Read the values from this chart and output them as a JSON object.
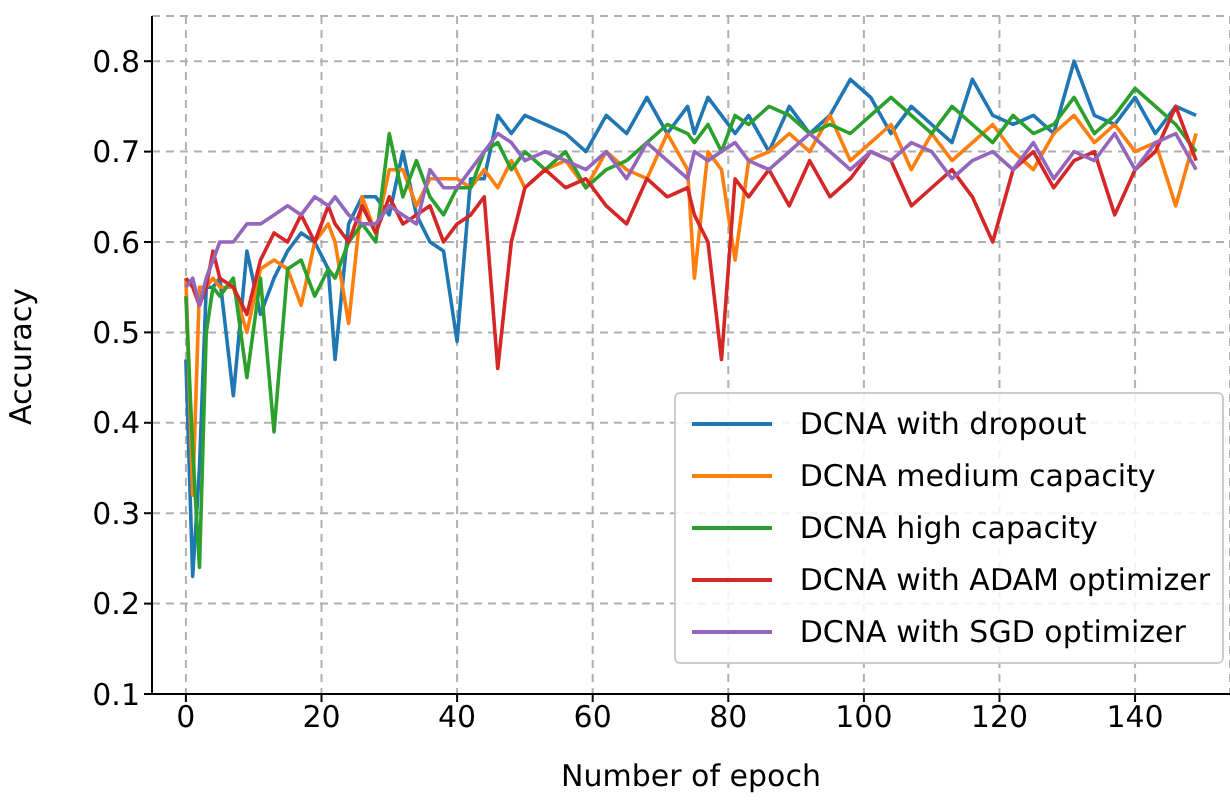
{
  "chart_data": {
    "type": "line",
    "xlabel": "Number of epoch",
    "ylabel": "Accuracy",
    "x": [
      0,
      1,
      2,
      3,
      4,
      5,
      7,
      9,
      11,
      13,
      15,
      17,
      19,
      21,
      22,
      24,
      26,
      28,
      30,
      32,
      34,
      36,
      38,
      40,
      42,
      44,
      46,
      48,
      50,
      53,
      56,
      59,
      62,
      65,
      68,
      71,
      74,
      75,
      77,
      79,
      81,
      83,
      86,
      89,
      92,
      95,
      98,
      101,
      104,
      107,
      110,
      113,
      116,
      119,
      122,
      125,
      128,
      131,
      134,
      137,
      140,
      143,
      146,
      149
    ],
    "series": [
      {
        "name": "DCNA with dropout",
        "color": "#1f77b4",
        "values": [
          0.47,
          0.23,
          0.35,
          0.55,
          0.55,
          0.56,
          0.43,
          0.59,
          0.52,
          0.56,
          0.59,
          0.61,
          0.6,
          0.57,
          0.47,
          0.62,
          0.65,
          0.65,
          0.63,
          0.7,
          0.63,
          0.6,
          0.59,
          0.49,
          0.67,
          0.67,
          0.74,
          0.72,
          0.74,
          0.73,
          0.72,
          0.7,
          0.74,
          0.72,
          0.76,
          0.72,
          0.75,
          0.72,
          0.76,
          0.74,
          0.72,
          0.74,
          0.7,
          0.75,
          0.72,
          0.74,
          0.78,
          0.76,
          0.72,
          0.75,
          0.73,
          0.71,
          0.78,
          0.74,
          0.73,
          0.74,
          0.72,
          0.8,
          0.74,
          0.73,
          0.76,
          0.72,
          0.75,
          0.74
        ]
      },
      {
        "name": "DCNA medium capacity",
        "color": "#ff7f0e",
        "values": [
          0.56,
          0.32,
          0.55,
          0.55,
          0.56,
          0.55,
          0.55,
          0.5,
          0.57,
          0.58,
          0.57,
          0.53,
          0.6,
          0.62,
          0.6,
          0.51,
          0.65,
          0.61,
          0.68,
          0.68,
          0.64,
          0.67,
          0.67,
          0.67,
          0.66,
          0.68,
          0.66,
          0.69,
          0.66,
          0.68,
          0.69,
          0.66,
          0.7,
          0.68,
          0.67,
          0.72,
          0.68,
          0.56,
          0.7,
          0.68,
          0.58,
          0.69,
          0.7,
          0.72,
          0.7,
          0.74,
          0.69,
          0.71,
          0.73,
          0.68,
          0.72,
          0.69,
          0.71,
          0.73,
          0.7,
          0.68,
          0.72,
          0.74,
          0.71,
          0.73,
          0.7,
          0.71,
          0.64,
          0.72
        ]
      },
      {
        "name": "DCNA high capacity",
        "color": "#2ca02c",
        "values": [
          0.54,
          0.37,
          0.24,
          0.5,
          0.55,
          0.54,
          0.56,
          0.45,
          0.56,
          0.39,
          0.57,
          0.58,
          0.54,
          0.57,
          0.56,
          0.6,
          0.62,
          0.6,
          0.72,
          0.65,
          0.69,
          0.65,
          0.63,
          0.66,
          0.66,
          0.7,
          0.71,
          0.68,
          0.7,
          0.68,
          0.7,
          0.66,
          0.68,
          0.69,
          0.71,
          0.73,
          0.72,
          0.71,
          0.73,
          0.7,
          0.74,
          0.73,
          0.75,
          0.74,
          0.72,
          0.73,
          0.72,
          0.74,
          0.76,
          0.74,
          0.72,
          0.75,
          0.73,
          0.71,
          0.74,
          0.72,
          0.73,
          0.76,
          0.72,
          0.74,
          0.77,
          0.75,
          0.73,
          0.7
        ]
      },
      {
        "name": "DCNA with ADAM optimizer",
        "color": "#d62728",
        "values": [
          0.56,
          0.55,
          0.53,
          0.55,
          0.59,
          0.56,
          0.55,
          0.52,
          0.58,
          0.61,
          0.6,
          0.63,
          0.6,
          0.64,
          0.62,
          0.6,
          0.64,
          0.61,
          0.65,
          0.62,
          0.63,
          0.64,
          0.6,
          0.62,
          0.63,
          0.65,
          0.46,
          0.6,
          0.66,
          0.68,
          0.66,
          0.67,
          0.64,
          0.62,
          0.67,
          0.65,
          0.66,
          0.63,
          0.6,
          0.47,
          0.67,
          0.65,
          0.68,
          0.64,
          0.69,
          0.65,
          0.67,
          0.7,
          0.69,
          0.64,
          0.66,
          0.68,
          0.65,
          0.6,
          0.68,
          0.7,
          0.66,
          0.69,
          0.7,
          0.63,
          0.68,
          0.7,
          0.75,
          0.69
        ]
      },
      {
        "name": "DCNA with SGD optimizer",
        "color": "#9467bd",
        "values": [
          0.55,
          0.56,
          0.53,
          0.56,
          0.58,
          0.6,
          0.6,
          0.62,
          0.62,
          0.63,
          0.64,
          0.63,
          0.65,
          0.64,
          0.65,
          0.63,
          0.62,
          0.62,
          0.64,
          0.63,
          0.62,
          0.68,
          0.66,
          0.66,
          0.68,
          0.7,
          0.72,
          0.71,
          0.69,
          0.7,
          0.69,
          0.68,
          0.7,
          0.67,
          0.71,
          0.69,
          0.67,
          0.7,
          0.69,
          0.7,
          0.71,
          0.69,
          0.68,
          0.7,
          0.72,
          0.7,
          0.68,
          0.7,
          0.69,
          0.71,
          0.7,
          0.67,
          0.69,
          0.7,
          0.68,
          0.71,
          0.67,
          0.7,
          0.69,
          0.72,
          0.68,
          0.71,
          0.72,
          0.68
        ]
      }
    ],
    "xlim": [
      -5,
      154
    ],
    "xticks": [
      0,
      20,
      40,
      60,
      80,
      100,
      120,
      140
    ],
    "ylim": [
      0.1,
      0.85
    ],
    "yticks": [
      0.1,
      0.2,
      0.3,
      0.4,
      0.5,
      0.6,
      0.7,
      0.8
    ],
    "grid": true,
    "legend": "bottom right",
    "line_style": "solid"
  }
}
